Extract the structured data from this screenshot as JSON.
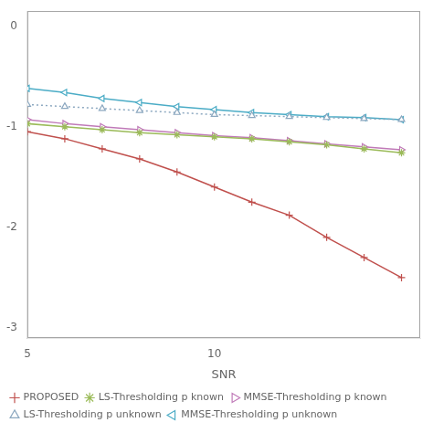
{
  "chart_data": {
    "type": "line",
    "x_label": "SNR",
    "x": [
      5,
      6,
      7,
      8,
      9,
      10,
      11,
      12,
      13,
      14,
      15
    ],
    "series": [
      {
        "name": "PROPOSED",
        "color": "#c0504d",
        "marker": "plus",
        "line_style": "solid",
        "values": [
          -1.05,
          -1.12,
          -1.22,
          -1.32,
          -1.45,
          -1.6,
          -1.75,
          -1.88,
          -2.1,
          -2.3,
          -2.5
        ]
      },
      {
        "name": "LS-Thresholding p known",
        "color": "#9bbb59",
        "marker": "star",
        "line_style": "solid",
        "values": [
          -0.97,
          -1.0,
          -1.03,
          -1.06,
          -1.08,
          -1.1,
          -1.12,
          -1.15,
          -1.18,
          -1.22,
          -1.26
        ]
      },
      {
        "name": "MMSE-Thresholding p known",
        "color": "#c07ab8",
        "marker": "triangle-right",
        "line_style": "solid",
        "values": [
          -0.93,
          -0.97,
          -1.0,
          -1.03,
          -1.06,
          -1.09,
          -1.11,
          -1.14,
          -1.17,
          -1.2,
          -1.23
        ]
      },
      {
        "name": "LS-Thresholding p unknown",
        "color": "#8ca8c0",
        "marker": "triangle-up",
        "line_style": "dotted",
        "values": [
          -0.78,
          -0.8,
          -0.82,
          -0.84,
          -0.86,
          -0.88,
          -0.89,
          -0.9,
          -0.91,
          -0.92,
          -0.93
        ]
      },
      {
        "name": "MMSE-Thresholding p unknown",
        "color": "#4bacc6",
        "marker": "triangle-left",
        "line_style": "solid",
        "values": [
          -0.62,
          -0.66,
          -0.72,
          -0.76,
          -0.8,
          -0.83,
          -0.86,
          -0.88,
          -0.9,
          -0.91,
          -0.93
        ]
      }
    ],
    "xlim": [
      5,
      15.5
    ],
    "xticks": [
      5,
      10
    ],
    "ylim": [
      -3.1,
      0.15
    ],
    "yticks": [
      0,
      -1,
      -2,
      -3
    ],
    "grid": false,
    "legend": "lower left"
  }
}
